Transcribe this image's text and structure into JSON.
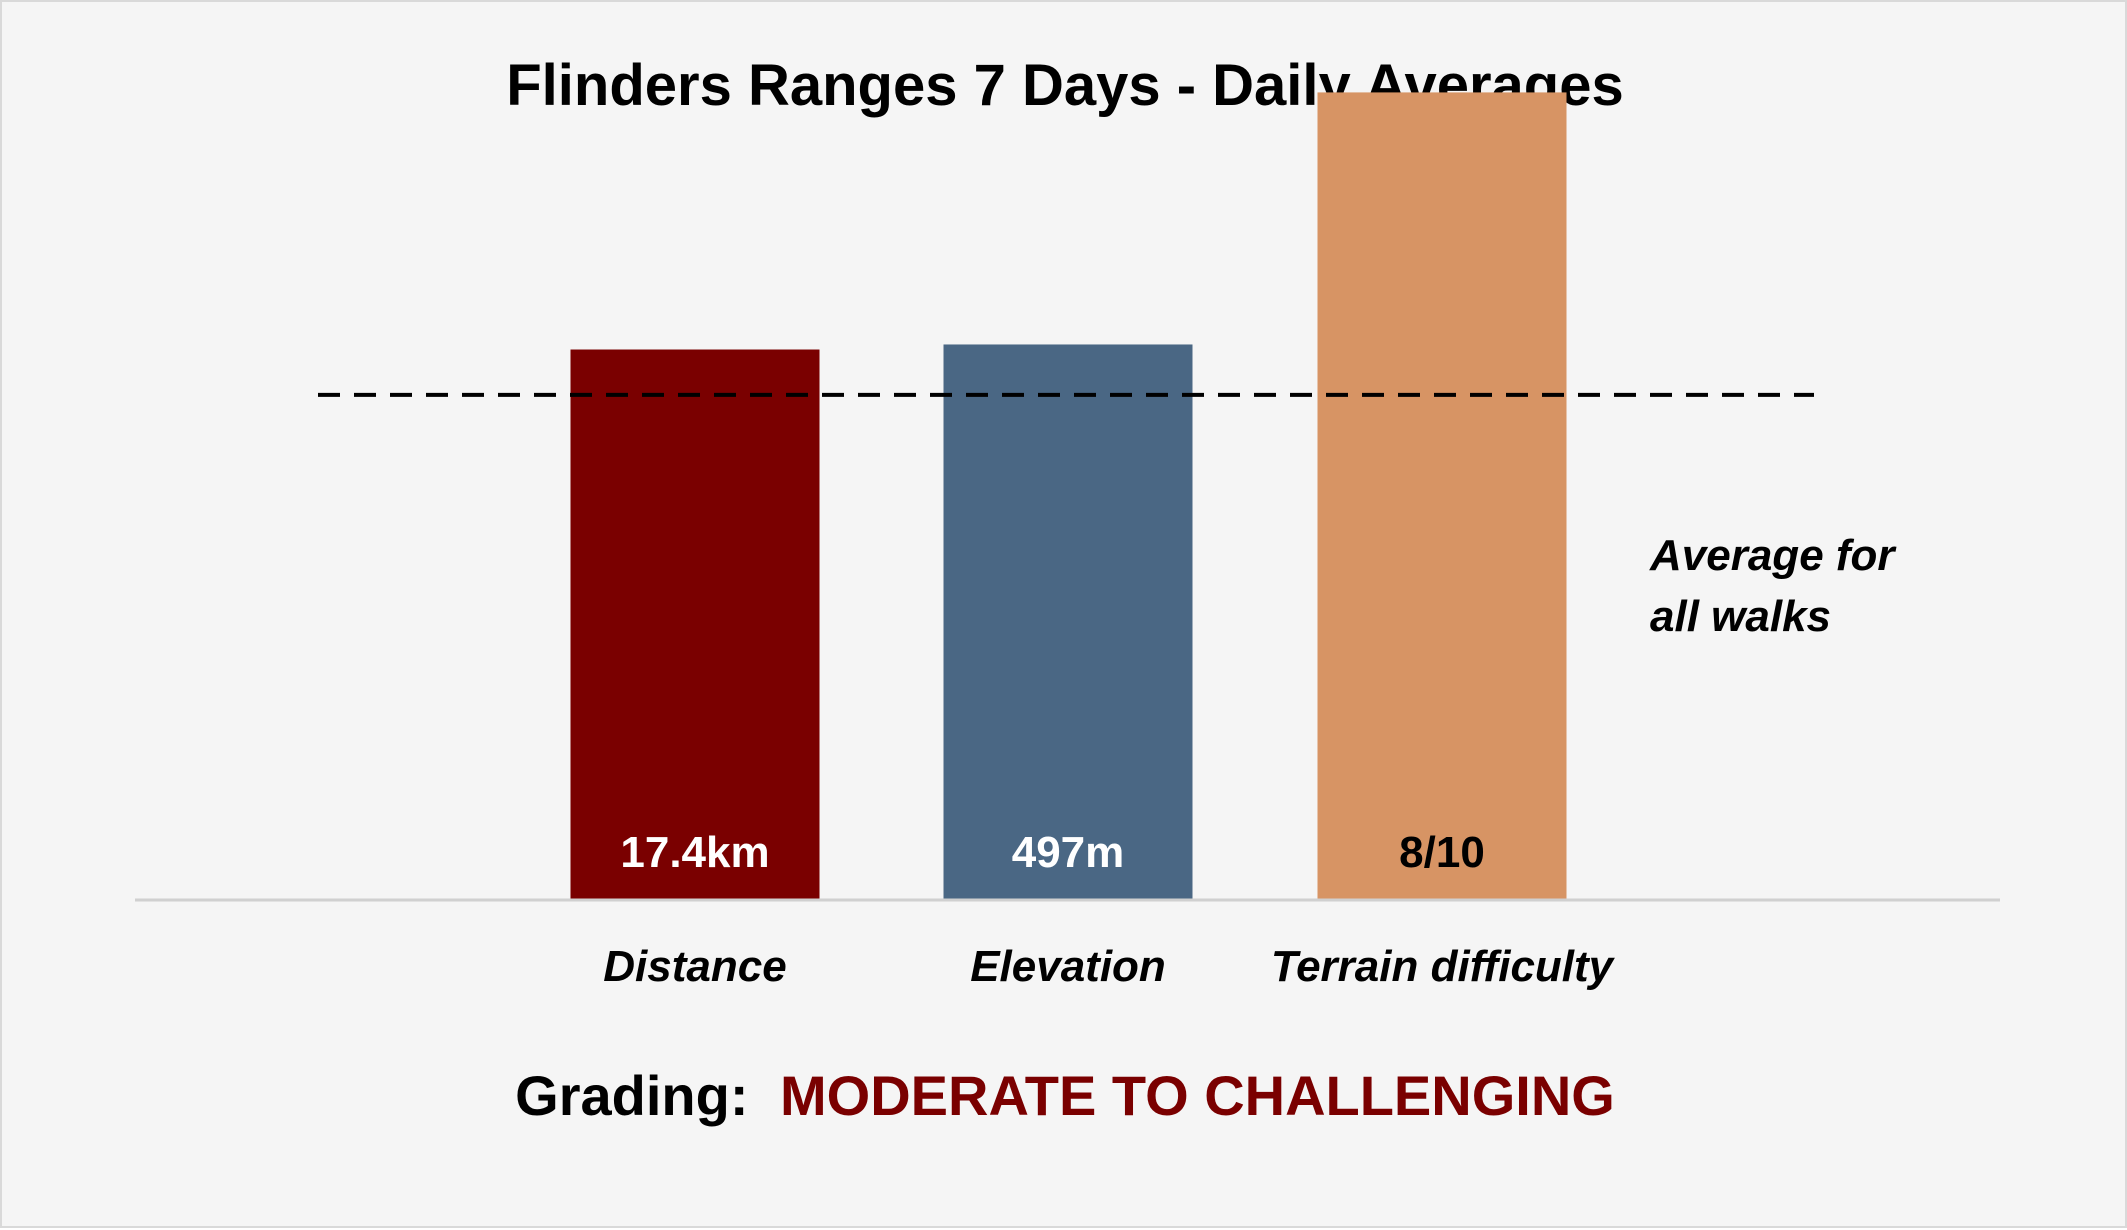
{
  "chart_data": {
    "type": "bar",
    "title": "Flinders Ranges 7 Days - Daily Averages",
    "categories": [
      "Distance",
      "Elevation",
      "Terrain difficulty"
    ],
    "value_labels": [
      "17.4km",
      "497m",
      "8/10"
    ],
    "relative_to_average": [
      1.09,
      1.1,
      1.6
    ],
    "ylim": [
      0,
      1.7
    ],
    "reference_line": {
      "value": 1.0,
      "style": "dashed",
      "label_lines": [
        "Average for",
        "all walks"
      ]
    },
    "bar_colors": [
      "#7a0000",
      "#4a6784",
      "#d79464"
    ],
    "value_label_colors": [
      "#ffffff",
      "#ffffff",
      "#000000"
    ],
    "grid": false,
    "legend": "none"
  },
  "grading": {
    "prefix": "Grading:",
    "value": "MODERATE TO CHALLENGING",
    "value_color": "#7a0000"
  }
}
